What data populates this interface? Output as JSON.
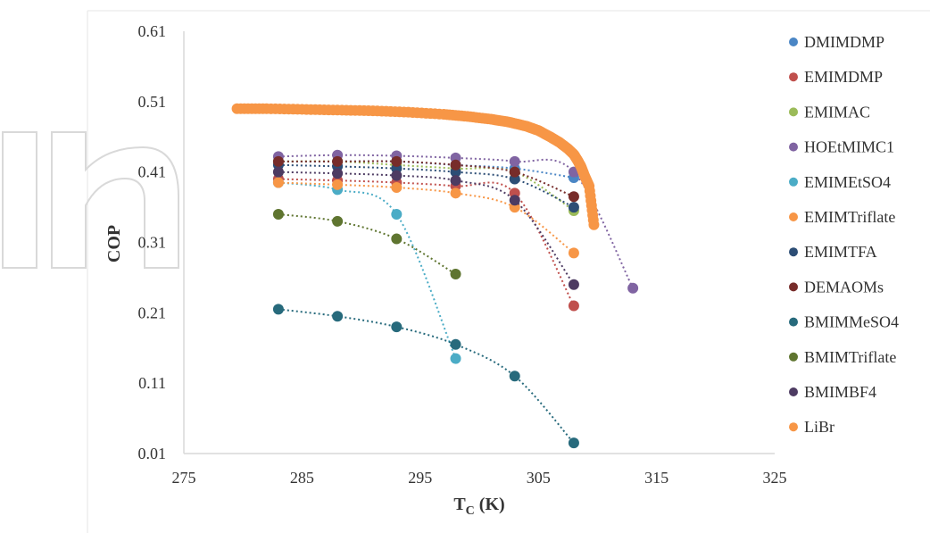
{
  "chart_data": {
    "type": "scatter",
    "title": "",
    "xlabel": "TC (K)",
    "xlabel_main": "T",
    "xlabel_sub": "C",
    "xlabel_unit": " (K)",
    "ylabel": "COP",
    "xlim": [
      275,
      325
    ],
    "ylim": [
      0.01,
      0.61
    ],
    "x_ticks": [
      275,
      285,
      295,
      305,
      315,
      325
    ],
    "y_ticks": [
      0.01,
      0.11,
      0.21,
      0.31,
      0.41,
      0.51,
      0.61
    ],
    "x_tick_labels": [
      "275",
      "285",
      "295",
      "305",
      "315",
      "325"
    ],
    "y_tick_labels": [
      "0.01",
      "0.11",
      "0.21",
      "0.31",
      "0.41",
      "0.51",
      "0.61"
    ],
    "grid": false,
    "legend_position": "right",
    "series": [
      {
        "name": "DMIMDMP",
        "color": "#4a86c5",
        "x": [
          283,
          288,
          293,
          298,
          303,
          308
        ],
        "y": [
          0.425,
          0.425,
          0.425,
          0.42,
          0.415,
          0.402
        ]
      },
      {
        "name": "EMIMDMP",
        "color": "#c0504d",
        "x": [
          283,
          288,
          293,
          298,
          303,
          308
        ],
        "y": [
          0.4,
          0.398,
          0.395,
          0.39,
          0.38,
          0.22
        ]
      },
      {
        "name": "EMIMAC",
        "color": "#9bbb59",
        "x": [
          283,
          288,
          293,
          298,
          303,
          308
        ],
        "y": [
          0.425,
          0.425,
          0.42,
          0.415,
          0.41,
          0.355
        ]
      },
      {
        "name": "HOEtMIMC1",
        "color": "#8064a2",
        "x": [
          283,
          288,
          293,
          298,
          303,
          308,
          313
        ],
        "y": [
          0.432,
          0.434,
          0.433,
          0.43,
          0.425,
          0.41,
          0.245
        ]
      },
      {
        "name": "EMIMEtSO4",
        "color": "#4bacc6",
        "x": [
          283,
          288,
          293,
          298
        ],
        "y": [
          0.395,
          0.385,
          0.35,
          0.145
        ]
      },
      {
        "name": "EMIMTriflate",
        "color": "#f79646",
        "x": [
          283,
          288,
          293,
          298,
          303,
          308
        ],
        "y": [
          0.395,
          0.392,
          0.388,
          0.38,
          0.36,
          0.295
        ]
      },
      {
        "name": "EMIMTFA",
        "color": "#2c4d75",
        "x": [
          283,
          288,
          293,
          298,
          303,
          308
        ],
        "y": [
          0.42,
          0.418,
          0.415,
          0.41,
          0.4,
          0.36
        ]
      },
      {
        "name": "DEMAOMs",
        "color": "#772c2a",
        "x": [
          283,
          288,
          293,
          298,
          303,
          308
        ],
        "y": [
          0.425,
          0.425,
          0.425,
          0.42,
          0.41,
          0.375
        ]
      },
      {
        "name": "BMIMMeSO4",
        "color": "#276a7c",
        "x": [
          283,
          288,
          293,
          298,
          303,
          308
        ],
        "y": [
          0.215,
          0.205,
          0.19,
          0.165,
          0.12,
          0.025
        ]
      },
      {
        "name": "BMIMTriflate",
        "color": "#5f7530",
        "x": [
          283,
          288,
          293,
          298
        ],
        "y": [
          0.35,
          0.34,
          0.315,
          0.265
        ]
      },
      {
        "name": "BMIMBF4",
        "color": "#4d3b62",
        "x": [
          283,
          288,
          293,
          298,
          303,
          308
        ],
        "y": [
          0.41,
          0.408,
          0.405,
          0.398,
          0.37,
          0.25
        ]
      },
      {
        "name": "LiBr",
        "color": "#f79646",
        "style": "curve",
        "x": [
          279.5,
          282,
          285,
          288,
          291,
          294,
          297,
          299,
          301,
          302.5,
          304,
          305,
          306,
          306.8,
          307.5,
          308,
          308.3,
          308.6,
          308.9,
          309.3,
          309.7
        ],
        "y": [
          0.5,
          0.5,
          0.499,
          0.498,
          0.497,
          0.495,
          0.492,
          0.489,
          0.485,
          0.481,
          0.475,
          0.469,
          0.46,
          0.452,
          0.443,
          0.435,
          0.427,
          0.418,
          0.405,
          0.39,
          0.335
        ]
      }
    ]
  },
  "colors": {
    "axis": "#d9d9d9",
    "text": "#333333",
    "watermark": "#d9d9d9"
  }
}
